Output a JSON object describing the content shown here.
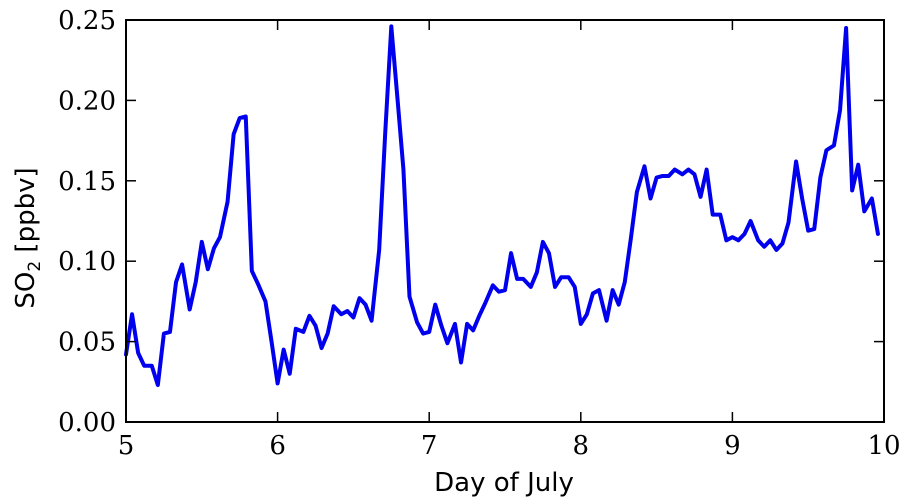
{
  "chart_data": {
    "type": "line",
    "title": "",
    "xlabel": "Day of July",
    "ylabel_main": "SO",
    "ylabel_sub": "2",
    "ylabel_unit": " [ppbv]",
    "xlim": [
      5,
      10
    ],
    "ylim": [
      0,
      0.25
    ],
    "xticks": [
      5,
      6,
      7,
      8,
      9,
      10
    ],
    "xtick_labels": [
      "5",
      "6",
      "7",
      "8",
      "9",
      "10"
    ],
    "yticks": [
      0,
      0.05,
      0.1,
      0.15,
      0.2,
      0.25
    ],
    "ytick_labels": [
      "0.00",
      "0.05",
      "0.10",
      "0.15",
      "0.20",
      "0.25"
    ],
    "grid": false,
    "line_color": "#0000ee",
    "series": [
      {
        "x": [
          5.0,
          5.04,
          5.08,
          5.12,
          5.17,
          5.21,
          5.25,
          5.29,
          5.33,
          5.37,
          5.42,
          5.46,
          5.5,
          5.54,
          5.58,
          5.62,
          5.67,
          5.71,
          5.75,
          5.79,
          5.83,
          5.87,
          5.92,
          5.96,
          6.0,
          6.04,
          6.08,
          6.12,
          6.17,
          6.21,
          6.25,
          6.29,
          6.33,
          6.37,
          6.42,
          6.46,
          6.5,
          6.54,
          6.58,
          6.62,
          6.67,
          6.71,
          6.75,
          6.79,
          6.83,
          6.87,
          6.92,
          6.96,
          7.0,
          7.04,
          7.08,
          7.12,
          7.17,
          7.21,
          7.25,
          7.29,
          7.33,
          7.37,
          7.42,
          7.46,
          7.5,
          7.54,
          7.58,
          7.62,
          7.67,
          7.71,
          7.75,
          7.79,
          7.83,
          7.87,
          7.92,
          7.96,
          8.0,
          8.04,
          8.08,
          8.12,
          8.17,
          8.21,
          8.25,
          8.29,
          8.33,
          8.37,
          8.42,
          8.46,
          8.5,
          8.54,
          8.58,
          8.62,
          8.67,
          8.71,
          8.75,
          8.79,
          8.83,
          8.87,
          8.92,
          8.96,
          9.0,
          9.04,
          9.08,
          9.12,
          9.17,
          9.21,
          9.25,
          9.29,
          9.33,
          9.37,
          9.42,
          9.46,
          9.5,
          9.54,
          9.58,
          9.62,
          9.67,
          9.71,
          9.75,
          9.79,
          9.83,
          9.87,
          9.92,
          9.96
        ],
        "y": [
          0.042,
          0.067,
          0.043,
          0.035,
          0.035,
          0.023,
          0.055,
          0.056,
          0.087,
          0.098,
          0.07,
          0.087,
          0.112,
          0.095,
          0.108,
          0.115,
          0.137,
          0.179,
          0.189,
          0.19,
          0.094,
          0.086,
          0.075,
          0.05,
          0.024,
          0.045,
          0.03,
          0.058,
          0.056,
          0.066,
          0.06,
          0.046,
          0.055,
          0.072,
          0.067,
          0.069,
          0.065,
          0.077,
          0.073,
          0.063,
          0.107,
          0.18,
          0.246,
          0.202,
          0.157,
          0.078,
          0.062,
          0.055,
          0.056,
          0.073,
          0.06,
          0.049,
          0.061,
          0.037,
          0.061,
          0.057,
          0.066,
          0.074,
          0.085,
          0.081,
          0.082,
          0.105,
          0.089,
          0.089,
          0.084,
          0.093,
          0.112,
          0.105,
          0.084,
          0.09,
          0.09,
          0.084,
          0.061,
          0.067,
          0.08,
          0.082,
          0.063,
          0.082,
          0.073,
          0.087,
          0.114,
          0.143,
          0.159,
          0.139,
          0.152,
          0.153,
          0.153,
          0.157,
          0.154,
          0.157,
          0.154,
          0.14,
          0.157,
          0.129,
          0.129,
          0.113,
          0.115,
          0.113,
          0.117,
          0.125,
          0.113,
          0.109,
          0.113,
          0.107,
          0.111,
          0.124,
          0.162,
          0.139,
          0.119,
          0.12,
          0.152,
          0.169,
          0.172,
          0.194,
          0.245,
          0.144,
          0.16,
          0.131,
          0.139,
          0.117
        ]
      }
    ]
  }
}
